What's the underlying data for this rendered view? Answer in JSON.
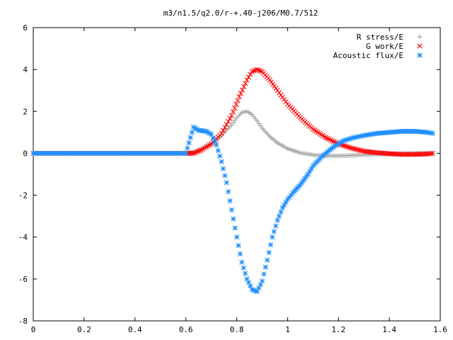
{
  "chart_data": {
    "type": "scatter",
    "title": "m3/n1.5/q2.0/r-+.40-j206/M0.7/512",
    "xlabel": "",
    "ylabel": "",
    "xlim": [
      0,
      1.6
    ],
    "ylim": [
      -8,
      6
    ],
    "x_ticks": [
      "0",
      "0.2",
      "0.4",
      "0.6",
      "0.8",
      "1",
      "1.2",
      "1.4",
      "1.6"
    ],
    "y_ticks": [
      "-8",
      "-6",
      "-4",
      "-2",
      "0",
      "2",
      "4",
      "6"
    ],
    "grid": false,
    "legend_position": "top-right",
    "series": [
      {
        "name": "R stress/E",
        "marker": "plus",
        "color": "#a0a0a0",
        "x": [
          0.0,
          0.1,
          0.2,
          0.3,
          0.4,
          0.5,
          0.6,
          0.63,
          0.66,
          0.7,
          0.74,
          0.78,
          0.8,
          0.82,
          0.84,
          0.86,
          0.88,
          0.9,
          0.93,
          0.96,
          1.0,
          1.05,
          1.1,
          1.15,
          1.2,
          1.25,
          1.3,
          1.35,
          1.4,
          1.45,
          1.5,
          1.55,
          1.57
        ],
        "y": [
          0.0,
          0.0,
          0.0,
          0.0,
          0.0,
          0.0,
          0.0,
          0.05,
          0.2,
          0.45,
          0.85,
          1.35,
          1.7,
          1.95,
          2.0,
          1.85,
          1.55,
          1.2,
          0.8,
          0.5,
          0.22,
          0.02,
          -0.08,
          -0.12,
          -0.12,
          -0.1,
          -0.07,
          -0.05,
          -0.03,
          -0.01,
          0.0,
          0.0,
          0.0
        ]
      },
      {
        "name": "G work/E",
        "marker": "cross",
        "color": "#ff0000",
        "x": [
          0.0,
          0.1,
          0.2,
          0.3,
          0.4,
          0.5,
          0.6,
          0.63,
          0.66,
          0.7,
          0.74,
          0.78,
          0.81,
          0.84,
          0.86,
          0.88,
          0.9,
          0.93,
          0.96,
          1.0,
          1.05,
          1.1,
          1.15,
          1.2,
          1.25,
          1.3,
          1.35,
          1.4,
          1.45,
          1.5,
          1.55,
          1.57
        ],
        "y": [
          0.0,
          0.0,
          0.0,
          0.0,
          0.0,
          0.0,
          0.0,
          0.0,
          0.15,
          0.45,
          0.95,
          1.8,
          2.7,
          3.5,
          3.9,
          4.0,
          3.9,
          3.5,
          3.0,
          2.35,
          1.7,
          1.15,
          0.75,
          0.45,
          0.25,
          0.1,
          0.03,
          -0.02,
          -0.05,
          -0.05,
          -0.03,
          0.0
        ]
      },
      {
        "name": "Acoustic flux/E",
        "marker": "star",
        "color": "#1f8fff",
        "x": [
          0.0,
          0.1,
          0.2,
          0.3,
          0.4,
          0.5,
          0.6,
          0.63,
          0.65,
          0.68,
          0.7,
          0.72,
          0.74,
          0.76,
          0.78,
          0.8,
          0.82,
          0.84,
          0.86,
          0.88,
          0.9,
          0.92,
          0.94,
          0.96,
          0.98,
          1.0,
          1.02,
          1.05,
          1.08,
          1.1,
          1.14,
          1.18,
          1.22,
          1.26,
          1.3,
          1.35,
          1.4,
          1.45,
          1.5,
          1.55,
          1.57
        ],
        "y": [
          0.0,
          0.0,
          0.0,
          0.0,
          0.0,
          0.0,
          0.0,
          1.25,
          1.1,
          1.05,
          0.9,
          0.4,
          -0.4,
          -1.4,
          -2.7,
          -4.0,
          -5.2,
          -6.0,
          -6.5,
          -6.6,
          -6.1,
          -5.1,
          -4.0,
          -3.2,
          -2.6,
          -2.2,
          -1.9,
          -1.5,
          -1.0,
          -0.6,
          -0.1,
          0.3,
          0.6,
          0.75,
          0.85,
          0.95,
          1.0,
          1.05,
          1.05,
          1.0,
          0.95
        ]
      }
    ]
  }
}
